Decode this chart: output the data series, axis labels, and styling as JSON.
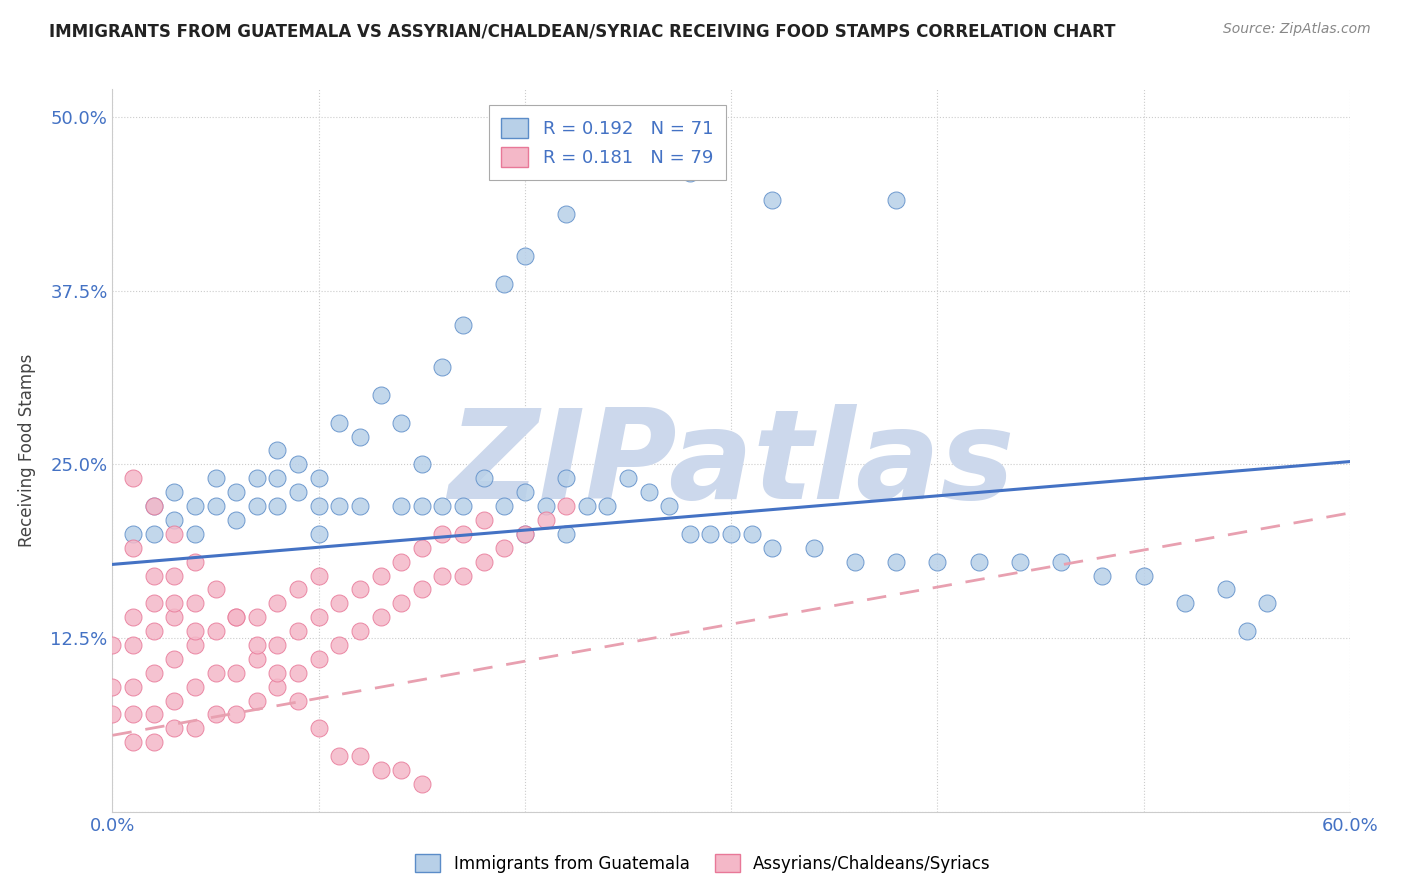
{
  "title": "IMMIGRANTS FROM GUATEMALA VS ASSYRIAN/CHALDEAN/SYRIAC RECEIVING FOOD STAMPS CORRELATION CHART",
  "source": "Source: ZipAtlas.com",
  "ylabel": "Receiving Food Stamps",
  "xlim": [
    0.0,
    0.6
  ],
  "ylim": [
    0.0,
    0.52
  ],
  "blue_R": 0.192,
  "blue_N": 71,
  "pink_R": 0.181,
  "pink_N": 79,
  "blue_color": "#b8d0e8",
  "pink_color": "#f4b8c8",
  "blue_edge_color": "#5b8cc8",
  "pink_edge_color": "#e87898",
  "blue_line_color": "#4472c4",
  "pink_line_color": "#e8a0b0",
  "watermark": "ZIPatlas",
  "watermark_color": "#ccd8ec",
  "legend_label_blue": "Immigrants from Guatemala",
  "legend_label_pink": "Assyrians/Chaldeans/Syriacs",
  "blue_line_x0": 0.0,
  "blue_line_y0": 0.178,
  "blue_line_x1": 0.6,
  "blue_line_y1": 0.252,
  "pink_line_x0": 0.0,
  "pink_line_y0": 0.055,
  "pink_line_x1": 0.6,
  "pink_line_y1": 0.215,
  "blue_x": [
    0.01,
    0.02,
    0.02,
    0.03,
    0.03,
    0.04,
    0.04,
    0.05,
    0.05,
    0.06,
    0.06,
    0.07,
    0.07,
    0.08,
    0.08,
    0.08,
    0.09,
    0.09,
    0.1,
    0.1,
    0.1,
    0.11,
    0.11,
    0.12,
    0.12,
    0.13,
    0.14,
    0.14,
    0.15,
    0.15,
    0.16,
    0.16,
    0.17,
    0.17,
    0.18,
    0.19,
    0.19,
    0.2,
    0.2,
    0.21,
    0.22,
    0.22,
    0.23,
    0.24,
    0.25,
    0.26,
    0.27,
    0.28,
    0.29,
    0.3,
    0.31,
    0.32,
    0.34,
    0.36,
    0.38,
    0.4,
    0.42,
    0.44,
    0.46,
    0.48,
    0.5,
    0.52,
    0.54,
    0.56,
    0.2,
    0.22,
    0.25,
    0.28,
    0.32,
    0.38,
    0.55
  ],
  "blue_y": [
    0.2,
    0.2,
    0.22,
    0.21,
    0.23,
    0.2,
    0.22,
    0.22,
    0.24,
    0.21,
    0.23,
    0.22,
    0.24,
    0.22,
    0.24,
    0.26,
    0.23,
    0.25,
    0.2,
    0.22,
    0.24,
    0.22,
    0.28,
    0.22,
    0.27,
    0.3,
    0.22,
    0.28,
    0.22,
    0.25,
    0.22,
    0.32,
    0.22,
    0.35,
    0.24,
    0.22,
    0.38,
    0.2,
    0.23,
    0.22,
    0.2,
    0.24,
    0.22,
    0.22,
    0.24,
    0.23,
    0.22,
    0.2,
    0.2,
    0.2,
    0.2,
    0.19,
    0.19,
    0.18,
    0.18,
    0.18,
    0.18,
    0.18,
    0.18,
    0.17,
    0.17,
    0.15,
    0.16,
    0.15,
    0.4,
    0.43,
    0.47,
    0.46,
    0.44,
    0.44,
    0.13
  ],
  "pink_x": [
    0.0,
    0.0,
    0.0,
    0.01,
    0.01,
    0.01,
    0.01,
    0.01,
    0.02,
    0.02,
    0.02,
    0.02,
    0.02,
    0.03,
    0.03,
    0.03,
    0.03,
    0.03,
    0.04,
    0.04,
    0.04,
    0.04,
    0.05,
    0.05,
    0.05,
    0.06,
    0.06,
    0.06,
    0.07,
    0.07,
    0.07,
    0.08,
    0.08,
    0.08,
    0.09,
    0.09,
    0.09,
    0.1,
    0.1,
    0.1,
    0.11,
    0.11,
    0.12,
    0.12,
    0.13,
    0.13,
    0.14,
    0.14,
    0.15,
    0.15,
    0.16,
    0.16,
    0.17,
    0.17,
    0.18,
    0.18,
    0.19,
    0.2,
    0.21,
    0.22,
    0.01,
    0.02,
    0.03,
    0.04,
    0.05,
    0.06,
    0.07,
    0.08,
    0.09,
    0.1,
    0.11,
    0.12,
    0.13,
    0.14,
    0.15,
    0.01,
    0.02,
    0.03,
    0.04
  ],
  "pink_y": [
    0.07,
    0.09,
    0.12,
    0.05,
    0.07,
    0.09,
    0.12,
    0.14,
    0.05,
    0.07,
    0.1,
    0.13,
    0.15,
    0.06,
    0.08,
    0.11,
    0.14,
    0.17,
    0.06,
    0.09,
    0.12,
    0.15,
    0.07,
    0.1,
    0.13,
    0.07,
    0.1,
    0.14,
    0.08,
    0.11,
    0.14,
    0.09,
    0.12,
    0.15,
    0.1,
    0.13,
    0.16,
    0.11,
    0.14,
    0.17,
    0.12,
    0.15,
    0.13,
    0.16,
    0.14,
    0.17,
    0.15,
    0.18,
    0.16,
    0.19,
    0.17,
    0.2,
    0.17,
    0.2,
    0.18,
    0.21,
    0.19,
    0.2,
    0.21,
    0.22,
    0.24,
    0.22,
    0.2,
    0.18,
    0.16,
    0.14,
    0.12,
    0.1,
    0.08,
    0.06,
    0.04,
    0.04,
    0.03,
    0.03,
    0.02,
    0.19,
    0.17,
    0.15,
    0.13
  ]
}
